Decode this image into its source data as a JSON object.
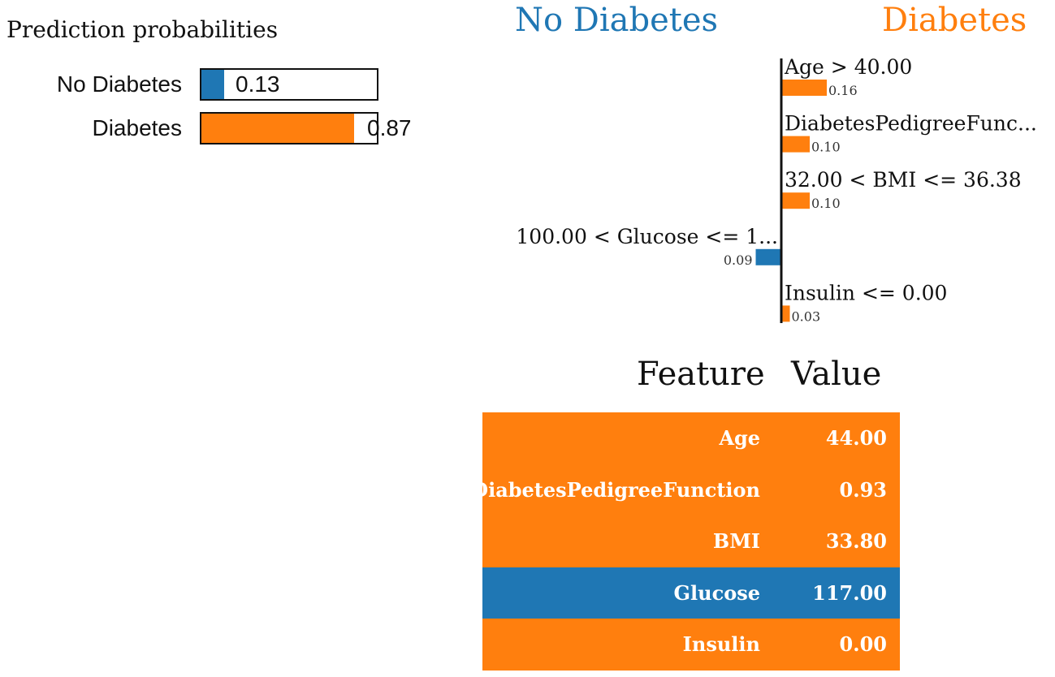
{
  "colors": {
    "negative": "#1f77b4",
    "positive": "#ff7f0e"
  },
  "prediction_probabilities": {
    "title": "Prediction probabilities",
    "items": [
      {
        "label": "No Diabetes",
        "value": 0.13,
        "value_label": "0.13",
        "color": "#1f77b4"
      },
      {
        "label": "Diabetes",
        "value": 0.87,
        "value_label": "0.87",
        "color": "#ff7f0e"
      }
    ]
  },
  "class_labels": {
    "negative": "No Diabetes",
    "positive": "Diabetes"
  },
  "feature_table": {
    "headers": [
      "Feature",
      "Value"
    ],
    "rows": [
      {
        "feature": "Age",
        "value": "44.00",
        "color": "#ff7f0e"
      },
      {
        "feature": "DiabetesPedigreeFunction",
        "value": "0.93",
        "color": "#ff7f0e"
      },
      {
        "feature": "BMI",
        "value": "33.80",
        "color": "#ff7f0e"
      },
      {
        "feature": "Glucose",
        "value": "117.00",
        "color": "#1f77b4"
      },
      {
        "feature": "Insulin",
        "value": "0.00",
        "color": "#ff7f0e"
      }
    ]
  },
  "chart_data": {
    "type": "bar",
    "orientation": "horizontal",
    "categories": [
      "Age > 40.00",
      "DiabetesPedigreeFunc...",
      "32.00 < BMI <= 36.38",
      "100.00 < Glucose <= 1...",
      "Insulin <= 0.00"
    ],
    "values": [
      0.16,
      0.1,
      0.1,
      -0.09,
      0.03
    ],
    "value_labels": [
      "0.16",
      "0.10",
      "0.10",
      "0.09",
      "0.03"
    ],
    "xlim": [
      -0.11,
      0.2
    ],
    "grid": false
  }
}
